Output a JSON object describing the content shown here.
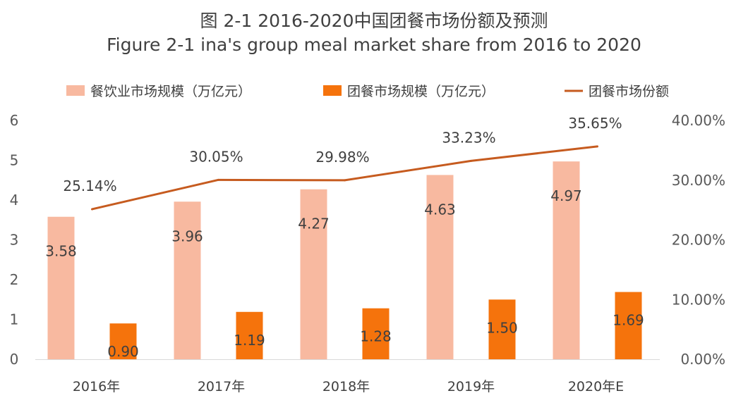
{
  "chart_data": {
    "type": "bar",
    "title": "图 2-1 2016-2020中国团餐市场份额及预测",
    "subtitle": "Figure 2-1 ina's group meal market share from 2016 to 2020",
    "categories": [
      "2016年",
      "2017年",
      "2018年",
      "2019年",
      "2020年E"
    ],
    "series": [
      {
        "name": "餐饮业市场规模（万亿元）",
        "type": "bar",
        "axis": "left",
        "color": "#F8B9A0",
        "values": [
          3.58,
          3.96,
          4.27,
          4.63,
          4.97
        ],
        "labels": [
          "3.58",
          "3.96",
          "4.27",
          "4.63",
          "4.97"
        ]
      },
      {
        "name": "团餐市场规模（万亿元）",
        "type": "bar",
        "axis": "left",
        "color": "#F5730C",
        "values": [
          0.9,
          1.19,
          1.28,
          1.5,
          1.69
        ],
        "labels": [
          "0.90",
          "1.19",
          "1.28",
          "1.50",
          "1.69"
        ]
      },
      {
        "name": "团餐市场份额",
        "type": "line",
        "axis": "right",
        "color": "#C65B1F",
        "values": [
          25.14,
          30.05,
          29.98,
          33.23,
          35.65
        ],
        "labels": [
          "25.14%",
          "30.05%",
          "29.98%",
          "33.23%",
          "35.65%"
        ]
      }
    ],
    "y_left": {
      "ylim": [
        0,
        6
      ],
      "ticks": [
        "0",
        "1",
        "2",
        "3",
        "4",
        "5",
        "6"
      ]
    },
    "y_right": {
      "ylim": [
        0,
        40
      ],
      "ticks": [
        "0.00%",
        "10.00%",
        "20.00%",
        "30.00%",
        "40.00%"
      ]
    },
    "grid": false,
    "legend_position": "top"
  }
}
